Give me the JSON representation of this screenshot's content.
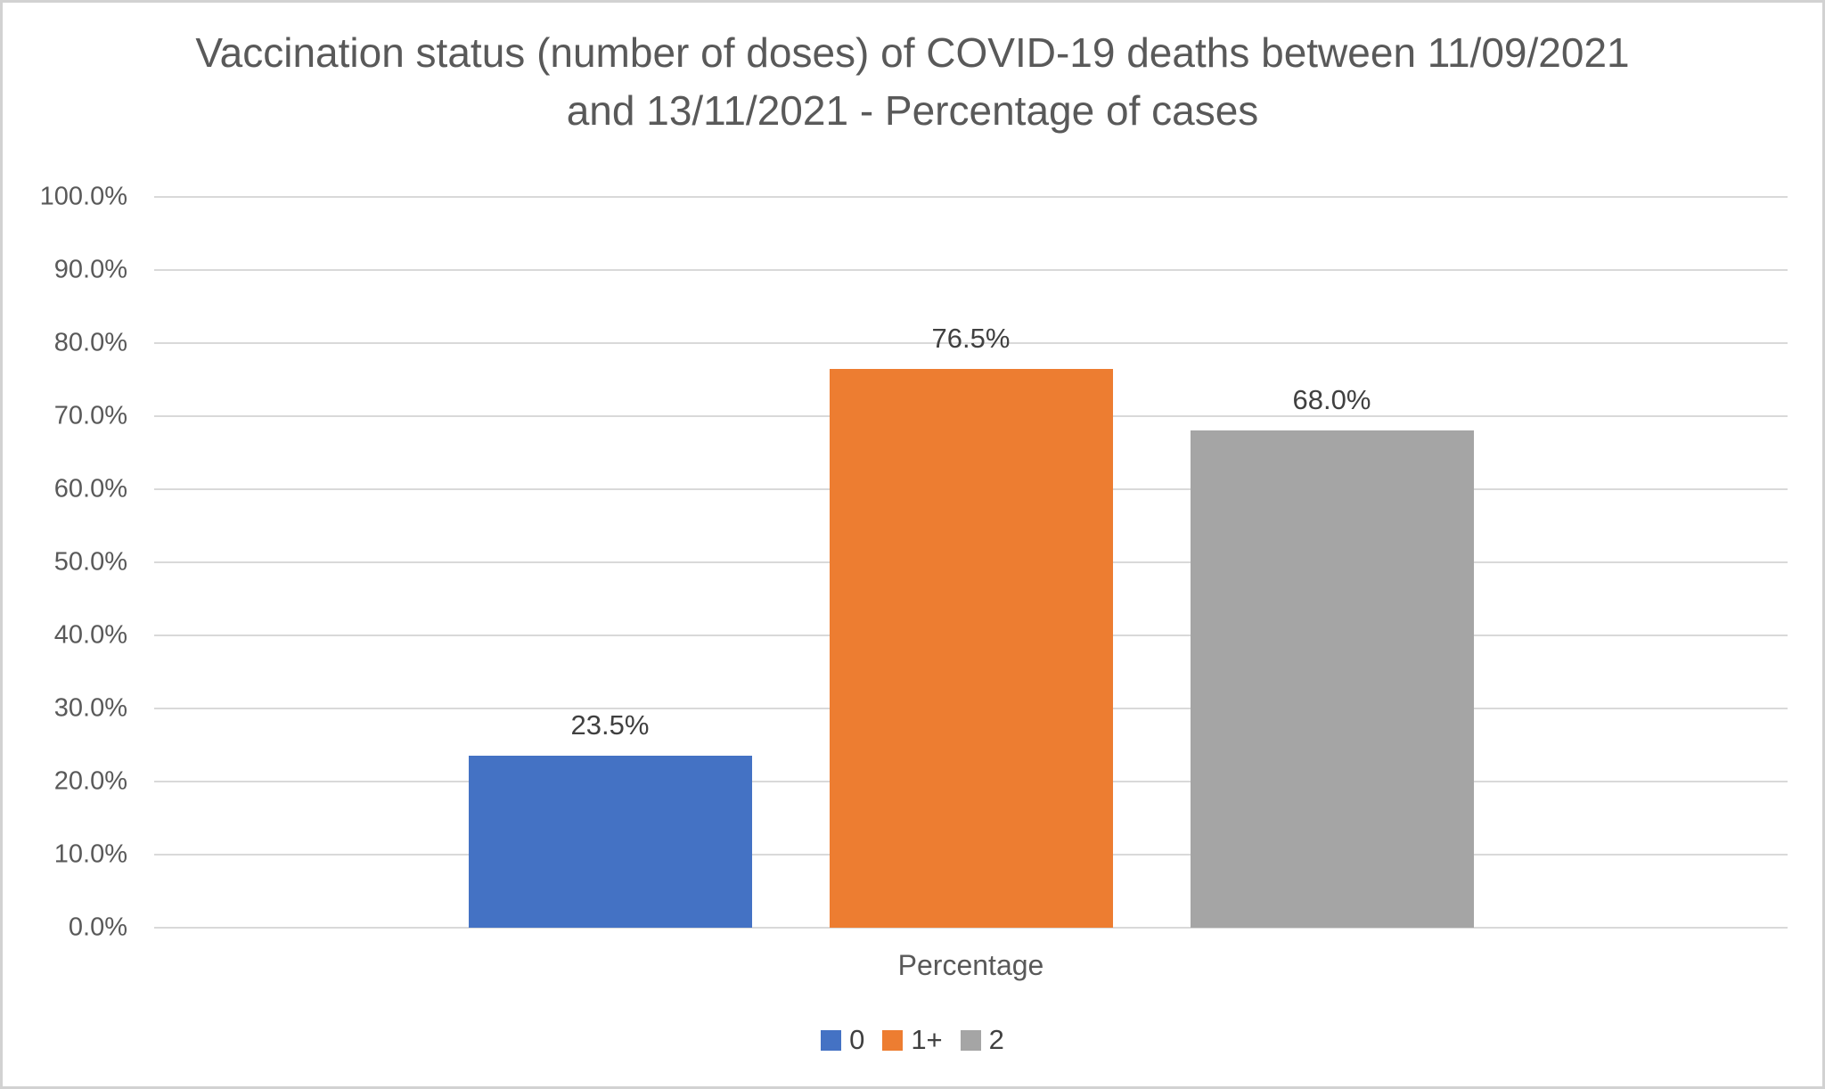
{
  "chart_data": {
    "type": "bar",
    "title": "Vaccination status (number of doses) of COVID-19 deaths between 11/09/2021 and 13/11/2021 - Percentage of cases",
    "categories": [
      "Percentage"
    ],
    "series": [
      {
        "name": "0",
        "values": [
          23.5
        ],
        "data_label": "23.5%",
        "color": "#4472C4"
      },
      {
        "name": "1+",
        "values": [
          76.5
        ],
        "data_label": "76.5%",
        "color": "#ED7D31"
      },
      {
        "name": "2",
        "values": [
          68.0
        ],
        "data_label": "68.0%",
        "color": "#A5A5A5"
      }
    ],
    "xlabel": "Percentage",
    "ylabel": "",
    "ylim": [
      0,
      100
    ],
    "ytick_step": 10,
    "ytick_labels": [
      "0.0%",
      "10.0%",
      "20.0%",
      "30.0%",
      "40.0%",
      "50.0%",
      "60.0%",
      "70.0%",
      "80.0%",
      "90.0%",
      "100.0%"
    ],
    "grid": true,
    "legend_position": "bottom",
    "legend_labels": [
      "0",
      "1+",
      "2"
    ]
  },
  "style": {
    "background_color": "#FFFFFF",
    "border_color": "#D2D2D2",
    "gridline_color": "#D9D9D9",
    "title_color": "#595959",
    "axis_label_color": "#595959",
    "data_label_color": "#404040",
    "legend_text_color": "#404040"
  }
}
